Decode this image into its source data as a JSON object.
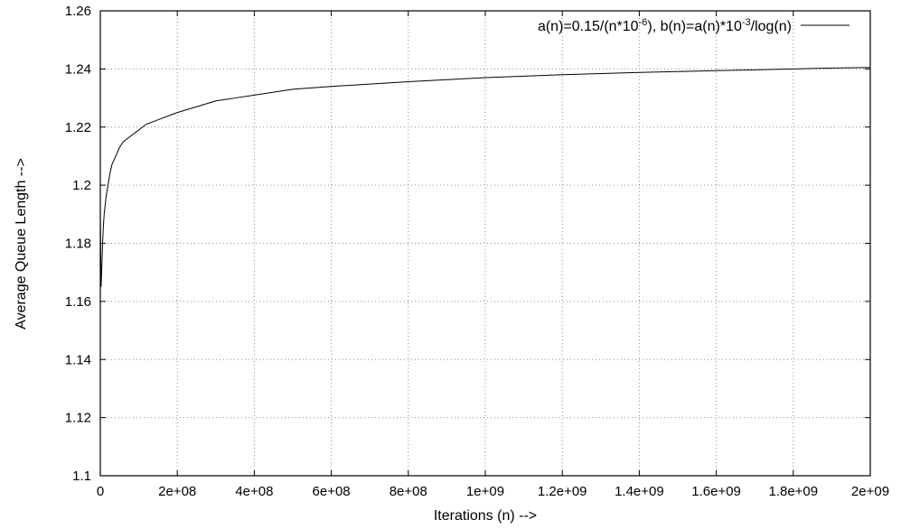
{
  "chart_data": {
    "type": "line",
    "title": "",
    "xlabel": "Iterations (n) -->",
    "ylabel": "Average Queue Length -->",
    "xlim": [
      0,
      2000000000
    ],
    "ylim": [
      1.1,
      1.26
    ],
    "grid": true,
    "legend_position": "top-right",
    "x_ticks": [
      {
        "value": 0,
        "label": "0"
      },
      {
        "value": 200000000,
        "label": "2e+08"
      },
      {
        "value": 400000000,
        "label": "4e+08"
      },
      {
        "value": 600000000,
        "label": "6e+08"
      },
      {
        "value": 800000000,
        "label": "8e+08"
      },
      {
        "value": 1000000000,
        "label": "1e+09"
      },
      {
        "value": 1200000000,
        "label": "1.2e+09"
      },
      {
        "value": 1400000000,
        "label": "1.4e+09"
      },
      {
        "value": 1600000000,
        "label": "1.6e+09"
      },
      {
        "value": 1800000000,
        "label": "1.8e+09"
      },
      {
        "value": 2000000000,
        "label": "2e+09"
      }
    ],
    "y_ticks": [
      {
        "value": 1.1,
        "label": "1.1"
      },
      {
        "value": 1.12,
        "label": "1.12"
      },
      {
        "value": 1.14,
        "label": "1.14"
      },
      {
        "value": 1.16,
        "label": "1.16"
      },
      {
        "value": 1.18,
        "label": "1.18"
      },
      {
        "value": 1.2,
        "label": "1.2"
      },
      {
        "value": 1.22,
        "label": "1.22"
      },
      {
        "value": 1.24,
        "label": "1.24"
      },
      {
        "value": 1.26,
        "label": "1.26"
      }
    ],
    "series": [
      {
        "legend": {
          "a_prefix": "a(n)=0.15/(n*10",
          "a_exp": "-6",
          "b_prefix": "), b(n)=a(n)*10",
          "b_exp": "-3",
          "b_suffix": "/log(n)"
        },
        "color": "#000000",
        "x": [
          0,
          2000000,
          4000000,
          6000000,
          8000000,
          10000000,
          15000000,
          20000000,
          25000000,
          30000000,
          40000000,
          50000000,
          60000000,
          70000000,
          80000000,
          90000000,
          100000000,
          120000000,
          140000000,
          160000000,
          180000000,
          200000000,
          250000000,
          300000000,
          350000000,
          400000000,
          450000000,
          500000000,
          600000000,
          700000000,
          800000000,
          900000000,
          1000000000,
          1100000000,
          1200000000,
          1300000000,
          1400000000,
          1500000000,
          1600000000,
          1700000000,
          1800000000,
          1900000000,
          2000000000
        ],
        "y": [
          1.19,
          1.165,
          1.172,
          1.18,
          1.186,
          1.19,
          1.196,
          1.2,
          1.204,
          1.207,
          1.21,
          1.213,
          1.215,
          1.216,
          1.217,
          1.218,
          1.219,
          1.221,
          1.222,
          1.223,
          1.224,
          1.225,
          1.227,
          1.229,
          1.23,
          1.231,
          1.232,
          1.233,
          1.234,
          1.2348,
          1.2356,
          1.2363,
          1.237,
          1.2375,
          1.238,
          1.2384,
          1.2388,
          1.2391,
          1.2394,
          1.2397,
          1.24,
          1.2403,
          1.2405
        ]
      }
    ]
  }
}
